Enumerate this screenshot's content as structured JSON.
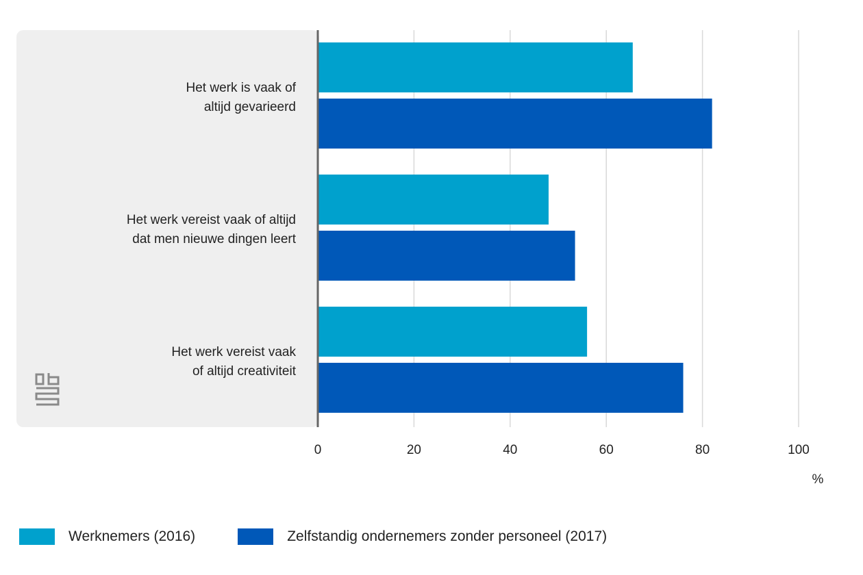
{
  "chart_data": {
    "type": "bar",
    "orientation": "horizontal",
    "unit_label": "%",
    "xlim": [
      0,
      100
    ],
    "x_ticks": [
      0,
      20,
      40,
      60,
      80,
      100
    ],
    "grid": true,
    "legend_position": "bottom-left",
    "categories": [
      [
        "Het werk is vaak of",
        "altijd gevarieerd"
      ],
      [
        "Het werk vereist vaak of altijd",
        "dat men nieuwe dingen leert"
      ],
      [
        "Het werk vereist vaak",
        "of altijd creativiteit"
      ]
    ],
    "series": [
      {
        "name": "Werknemers (2016)",
        "color": "#00a1cd",
        "values": [
          65.5,
          48,
          56
        ]
      },
      {
        "name": "Zelfstandig ondernemers zonder personeel (2017)",
        "color": "#0058b8",
        "values": [
          82,
          53.5,
          76
        ]
      }
    ]
  },
  "logo": {
    "icon": "cbs-logo-icon"
  },
  "colors": {
    "panel": "#efefef",
    "axis": "#666666",
    "grid": "#d9d9d9"
  }
}
